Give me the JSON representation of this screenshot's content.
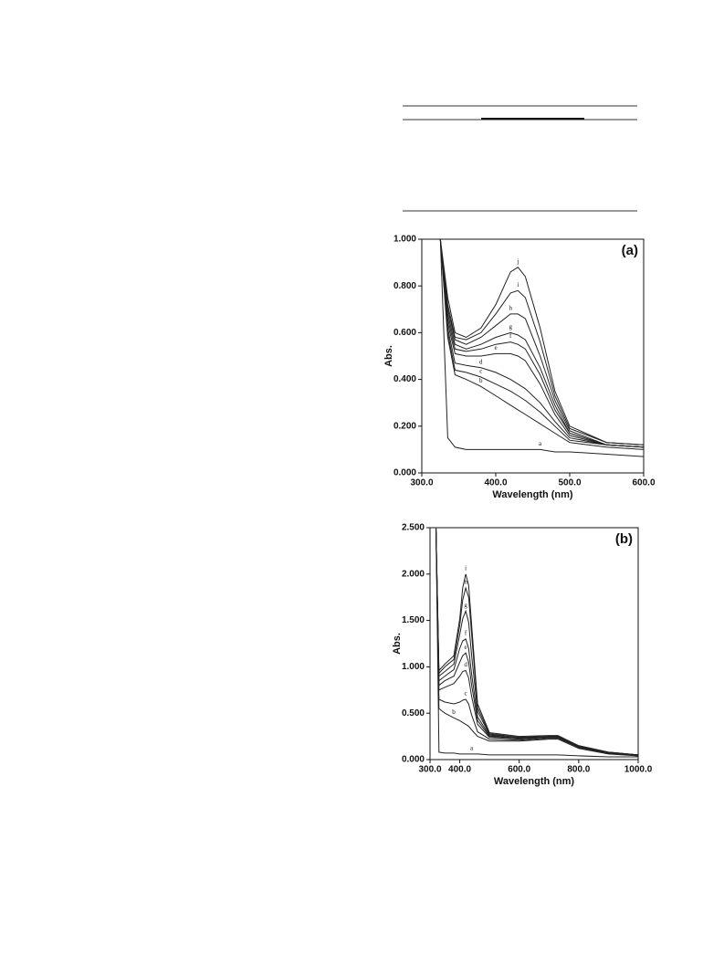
{
  "chart_data": [
    {
      "type": "line",
      "panel_label": "(a)",
      "x_label": "Wavelength (nm)",
      "y_label": "Abs.",
      "color": "#222222",
      "x": [
        325,
        335,
        345,
        360,
        380,
        400,
        420,
        430,
        440,
        460,
        480,
        500,
        550,
        600
      ],
      "series": [
        {
          "name": "a",
          "values": [
            1.0,
            0.15,
            0.11,
            0.1,
            0.1,
            0.1,
            0.1,
            0.1,
            0.1,
            0.1,
            0.09,
            0.09,
            0.08,
            0.07
          ]
        },
        {
          "name": "b",
          "values": [
            1.0,
            0.58,
            0.42,
            0.4,
            0.37,
            0.33,
            0.29,
            0.27,
            0.25,
            0.21,
            0.17,
            0.13,
            0.11,
            0.1
          ]
        },
        {
          "name": "c",
          "values": [
            1.0,
            0.6,
            0.44,
            0.43,
            0.41,
            0.38,
            0.35,
            0.33,
            0.31,
            0.26,
            0.2,
            0.14,
            0.12,
            0.11
          ]
        },
        {
          "name": "d",
          "values": [
            1.0,
            0.62,
            0.47,
            0.46,
            0.45,
            0.43,
            0.4,
            0.38,
            0.36,
            0.3,
            0.22,
            0.15,
            0.12,
            0.11
          ]
        },
        {
          "name": "e",
          "values": [
            1.0,
            0.64,
            0.51,
            0.5,
            0.5,
            0.51,
            0.51,
            0.5,
            0.48,
            0.38,
            0.25,
            0.16,
            0.12,
            0.11
          ]
        },
        {
          "name": "f",
          "values": [
            1.0,
            0.66,
            0.53,
            0.52,
            0.53,
            0.55,
            0.56,
            0.55,
            0.53,
            0.42,
            0.27,
            0.17,
            0.12,
            0.11
          ]
        },
        {
          "name": "g",
          "values": [
            1.0,
            0.68,
            0.55,
            0.53,
            0.55,
            0.58,
            0.6,
            0.59,
            0.57,
            0.45,
            0.29,
            0.17,
            0.12,
            0.11
          ]
        },
        {
          "name": "h",
          "values": [
            1.0,
            0.7,
            0.57,
            0.55,
            0.58,
            0.63,
            0.68,
            0.68,
            0.66,
            0.5,
            0.31,
            0.18,
            0.12,
            0.11
          ]
        },
        {
          "name": "i",
          "values": [
            1.0,
            0.72,
            0.58,
            0.57,
            0.6,
            0.68,
            0.77,
            0.78,
            0.75,
            0.56,
            0.33,
            0.19,
            0.13,
            0.12
          ]
        },
        {
          "name": "j",
          "values": [
            1.0,
            0.75,
            0.6,
            0.58,
            0.62,
            0.72,
            0.86,
            0.88,
            0.84,
            0.62,
            0.35,
            0.2,
            0.13,
            0.12
          ]
        }
      ],
      "xlim": [
        300,
        600
      ],
      "xticks": [
        {
          "value": 300,
          "label": "300.0"
        },
        {
          "value": 400,
          "label": "400.0"
        },
        {
          "value": 500,
          "label": "500.0"
        },
        {
          "value": 600,
          "label": "600.0"
        }
      ],
      "ylim": [
        0,
        1
      ],
      "yticks": [
        {
          "value": 0,
          "label": "0.000"
        },
        {
          "value": 0.2,
          "label": "0.200"
        },
        {
          "value": 0.4,
          "label": "0.400"
        },
        {
          "value": 0.6,
          "label": "0.600"
        },
        {
          "value": 0.8,
          "label": "0.800"
        },
        {
          "value": 1,
          "label": "1.000"
        }
      ]
    },
    {
      "type": "line",
      "panel_label": "(b)",
      "x_label": "Wavelength (nm)",
      "y_label": "Abs.",
      "color": "#222222",
      "x": [
        320,
        330,
        350,
        380,
        400,
        410,
        420,
        430,
        440,
        460,
        500,
        600,
        700,
        730,
        800,
        900,
        1000
      ],
      "series": [
        {
          "name": "a",
          "values": [
            2.5,
            0.08,
            0.07,
            0.07,
            0.06,
            0.06,
            0.06,
            0.06,
            0.06,
            0.06,
            0.05,
            0.05,
            0.05,
            0.05,
            0.04,
            0.03,
            0.03
          ]
        },
        {
          "name": "b",
          "values": [
            2.5,
            0.55,
            0.5,
            0.45,
            0.42,
            0.4,
            0.38,
            0.36,
            0.32,
            0.25,
            0.2,
            0.2,
            0.22,
            0.22,
            0.12,
            0.06,
            0.04
          ]
        },
        {
          "name": "c",
          "values": [
            2.5,
            0.65,
            0.62,
            0.6,
            0.62,
            0.64,
            0.65,
            0.6,
            0.48,
            0.3,
            0.22,
            0.21,
            0.23,
            0.23,
            0.13,
            0.07,
            0.04
          ]
        },
        {
          "name": "d",
          "values": [
            2.5,
            0.75,
            0.78,
            0.82,
            0.9,
            0.95,
            0.96,
            0.88,
            0.68,
            0.38,
            0.24,
            0.22,
            0.24,
            0.24,
            0.13,
            0.07,
            0.05
          ]
        },
        {
          "name": "e",
          "values": [
            2.5,
            0.8,
            0.85,
            0.9,
            1.05,
            1.12,
            1.15,
            1.05,
            0.8,
            0.42,
            0.25,
            0.23,
            0.24,
            0.24,
            0.14,
            0.07,
            0.05
          ]
        },
        {
          "name": "f",
          "values": [
            2.5,
            0.85,
            0.9,
            0.97,
            1.2,
            1.28,
            1.3,
            1.2,
            0.92,
            0.46,
            0.26,
            0.23,
            0.25,
            0.25,
            0.14,
            0.07,
            0.05
          ]
        },
        {
          "name": "g",
          "values": [
            2.5,
            0.9,
            0.95,
            1.03,
            1.35,
            1.52,
            1.6,
            1.48,
            1.12,
            0.52,
            0.27,
            0.24,
            0.25,
            0.25,
            0.14,
            0.08,
            0.05
          ]
        },
        {
          "name": "h",
          "values": [
            2.5,
            0.93,
            1.0,
            1.08,
            1.45,
            1.72,
            1.85,
            1.75,
            1.35,
            0.56,
            0.28,
            0.24,
            0.25,
            0.25,
            0.15,
            0.08,
            0.05
          ]
        },
        {
          "name": "i",
          "values": [
            2.5,
            0.96,
            1.03,
            1.12,
            1.52,
            1.85,
            2.0,
            1.88,
            1.45,
            0.6,
            0.29,
            0.25,
            0.26,
            0.26,
            0.15,
            0.08,
            0.05
          ]
        }
      ],
      "xlim": [
        300,
        1000
      ],
      "xticks": [
        {
          "value": 300,
          "label": "300.0"
        },
        {
          "value": 400,
          "label": "400.0"
        },
        {
          "value": 600,
          "label": "600.0"
        },
        {
          "value": 800,
          "label": "800.0"
        },
        {
          "value": 1000,
          "label": "1000.0"
        }
      ],
      "ylim": [
        0,
        2.5
      ],
      "yticks": [
        {
          "value": 0,
          "label": "0.000"
        },
        {
          "value": 0.5,
          "label": "0.500"
        },
        {
          "value": 1,
          "label": "1.000"
        },
        {
          "value": 1.5,
          "label": "1.500"
        },
        {
          "value": 2,
          "label": "2.000"
        },
        {
          "value": 2.5,
          "label": "2.500"
        }
      ]
    }
  ]
}
